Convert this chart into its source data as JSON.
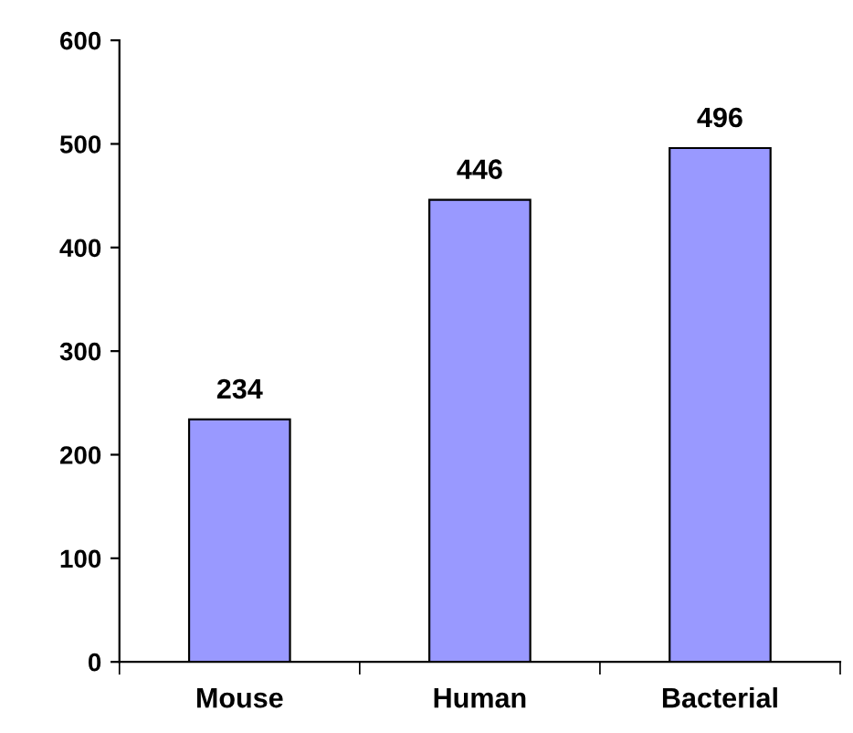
{
  "chart_data": {
    "type": "bar",
    "categories": [
      "Mouse",
      "Human",
      "Bacterial"
    ],
    "values": [
      234,
      446,
      496
    ],
    "color": "#9999ff",
    "ylim": [
      0,
      600
    ],
    "yticks": [
      0,
      100,
      200,
      300,
      400,
      500,
      600
    ],
    "grid": false,
    "data_labels": true
  }
}
